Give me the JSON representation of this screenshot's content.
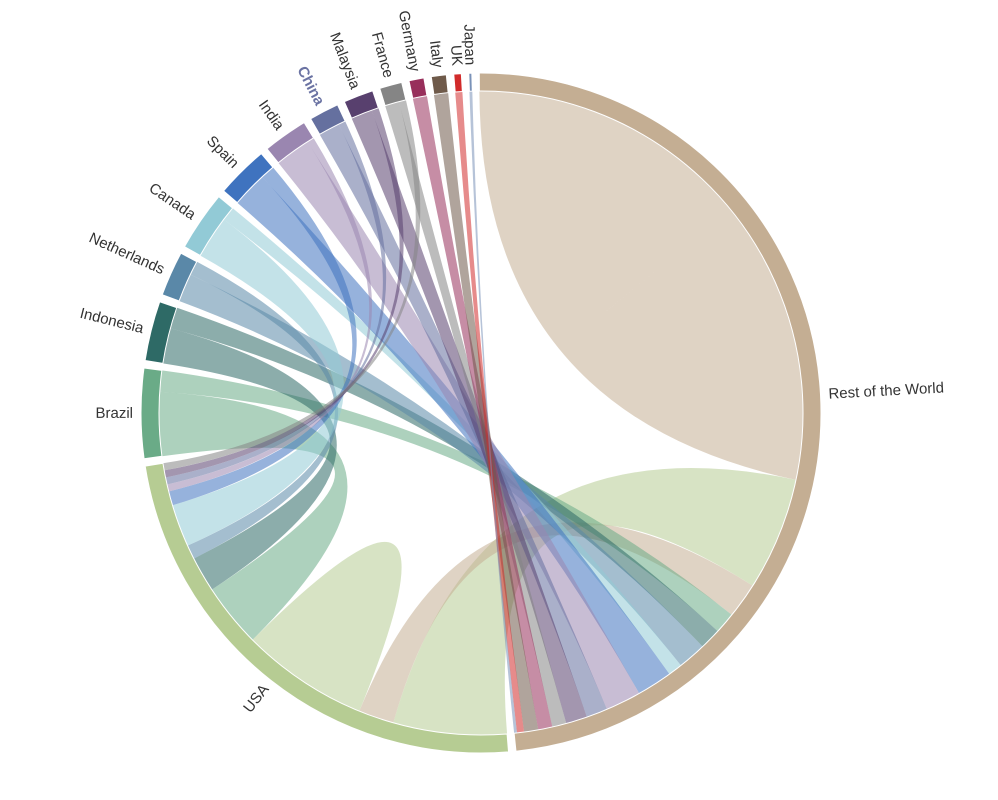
{
  "chart_data": {
    "type": "chord",
    "highlighted": "China",
    "nodes": [
      {
        "name": "Rest of the World",
        "color": "#c4ae93"
      },
      {
        "name": "USA",
        "color": "#b6cc93"
      },
      {
        "name": "Brazil",
        "color": "#6aab87"
      },
      {
        "name": "Indonesia",
        "color": "#2e6a66"
      },
      {
        "name": "Netherlands",
        "color": "#5a88a8"
      },
      {
        "name": "Canada",
        "color": "#92cad6"
      },
      {
        "name": "Spain",
        "color": "#3f73bf"
      },
      {
        "name": "India",
        "color": "#9a86b0"
      },
      {
        "name": "China",
        "color": "#65709f"
      },
      {
        "name": "Malaysia",
        "color": "#58406e"
      },
      {
        "name": "France",
        "color": "#858585"
      },
      {
        "name": "Germany",
        "color": "#982f5b"
      },
      {
        "name": "Italy",
        "color": "#6f5a4a"
      },
      {
        "name": "UK",
        "color": "#d12b2b"
      },
      {
        "name": "Japan",
        "color": "#7a92b8"
      }
    ],
    "flows": [
      {
        "from": "Rest of the World",
        "to": "Rest of the World",
        "value": 40
      },
      {
        "from": "USA",
        "to": "Rest of the World",
        "value": 16
      },
      {
        "from": "Rest of the World",
        "to": "USA",
        "value": 5
      },
      {
        "from": "USA",
        "to": "USA",
        "value": 9
      },
      {
        "from": "Brazil",
        "to": "USA",
        "value": 9
      },
      {
        "from": "Brazil",
        "to": "Rest of the World",
        "value": 3
      },
      {
        "from": "Indonesia",
        "to": "USA",
        "value": 5
      },
      {
        "from": "Indonesia",
        "to": "Rest of the World",
        "value": 3
      },
      {
        "from": "Netherlands",
        "to": "Rest of the World",
        "value": 4
      },
      {
        "from": "Netherlands",
        "to": "USA",
        "value": 2
      },
      {
        "from": "Canada",
        "to": "USA",
        "value": 6
      },
      {
        "from": "Canada",
        "to": "Rest of the World",
        "value": 2
      },
      {
        "from": "Spain",
        "to": "Rest of the World",
        "value": 5
      },
      {
        "from": "Spain",
        "to": "USA",
        "value": 2
      },
      {
        "from": "India",
        "to": "Rest of the World",
        "value": 5
      },
      {
        "from": "India",
        "to": "USA",
        "value": 1
      },
      {
        "from": "China",
        "to": "Rest of the World",
        "value": 3
      },
      {
        "from": "China",
        "to": "USA",
        "value": 1
      },
      {
        "from": "Malaysia",
        "to": "Rest of the World",
        "value": 3
      },
      {
        "from": "Malaysia",
        "to": "USA",
        "value": 1
      },
      {
        "from": "France",
        "to": "Rest of the World",
        "value": 2
      },
      {
        "from": "France",
        "to": "USA",
        "value": 1
      },
      {
        "from": "Germany",
        "to": "Rest of the World",
        "value": 2
      },
      {
        "from": "Italy",
        "to": "Rest of the World",
        "value": 2
      },
      {
        "from": "UK",
        "to": "Rest of the World",
        "value": 1
      },
      {
        "from": "Japan",
        "to": "Rest of the World",
        "value": 0.4
      }
    ]
  }
}
